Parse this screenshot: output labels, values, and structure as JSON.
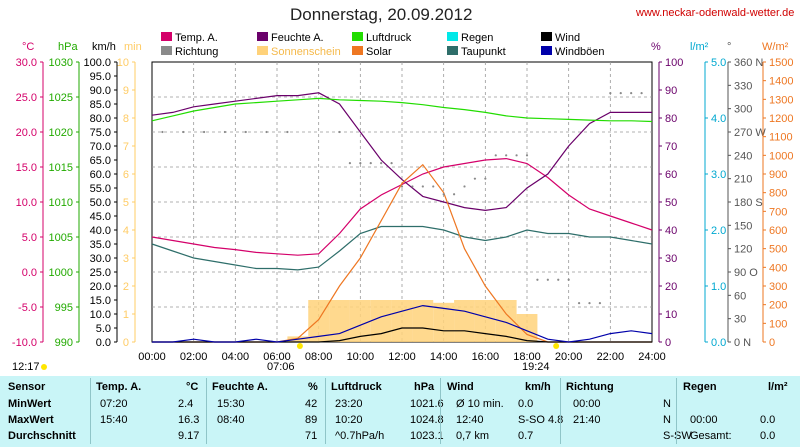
{
  "title": "Donnerstag, 20.09.2012",
  "site": "www.neckar-odenwald-wetter.de",
  "colors": {
    "temp": "#d4006a",
    "humidity": "#6a006a",
    "pressure": "#22dd00",
    "rain": "#00e8e8",
    "solar": "#ee7722",
    "dewpoint": "#2e6e6a",
    "direction": "#8a8a8a",
    "sunshine": "#ffd27a",
    "wind": "#000000",
    "gust": "#0000aa"
  },
  "legend": [
    {
      "label": "Temp. A.",
      "color": "#d4006a",
      "col": 0,
      "row": 0
    },
    {
      "label": "Feuchte A.",
      "color": "#6a006a",
      "col": 1,
      "row": 0
    },
    {
      "label": "Luftdruck",
      "color": "#22dd00",
      "col": 2,
      "row": 0
    },
    {
      "label": "Regen",
      "color": "#00e8e8",
      "col": 3,
      "row": 0
    },
    {
      "label": "Wind",
      "color": "#000000",
      "col": 4,
      "row": 0
    },
    {
      "label": "Richtung",
      "color": "#8a8a8a",
      "col": 0,
      "row": 1
    },
    {
      "label": "Sonnenschein",
      "color": "#ffd27a",
      "col": 1,
      "row": 1
    },
    {
      "label": "Solar",
      "color": "#ee7722",
      "col": 2,
      "row": 1
    },
    {
      "label": "Taupunkt",
      "color": "#2e6e6a",
      "col": 3,
      "row": 1
    },
    {
      "label": "Windböen",
      "color": "#0000aa",
      "col": 4,
      "row": 1
    }
  ],
  "axes": {
    "temp": {
      "unit": "°C",
      "color": "#d4006a",
      "ticks": [
        "30.0",
        "25.0",
        "20.0",
        "15.0",
        "10.0",
        "5.0",
        "0.0",
        "-5.0",
        "-10.0"
      ]
    },
    "pressure": {
      "unit": "hPa",
      "color": "#22aa00",
      "ticks": [
        "1030",
        "1025",
        "1020",
        "1015",
        "1010",
        "1005",
        "1000",
        "995",
        "990"
      ]
    },
    "wind": {
      "unit": "km/h",
      "color": "#000000",
      "ticks": [
        "100.0",
        "95.0",
        "90.0",
        "85.0",
        "80.0",
        "75.0",
        "70.0",
        "65.0",
        "60.0",
        "55.0",
        "50.0",
        "45.0",
        "40.0",
        "35.0",
        "30.0",
        "25.0",
        "20.0",
        "15.0",
        "10.0",
        "5.0",
        "0.0"
      ]
    },
    "sunshine": {
      "unit": "min",
      "color": "#ffcc66",
      "ticks": [
        "10",
        "9",
        "8",
        "7",
        "6",
        "5",
        "4",
        "3",
        "2",
        "1",
        "0"
      ]
    },
    "humidity": {
      "unit": "%",
      "color": "#6a006a",
      "ticks": [
        "100",
        "90",
        "80",
        "70",
        "60",
        "50",
        "40",
        "30",
        "20",
        "10",
        "0"
      ]
    },
    "rain": {
      "unit": "l/m²",
      "color": "#00a8d0",
      "ticks": [
        "5.0",
        "4.0",
        "3.0",
        "2.0",
        "1.0",
        "0.0"
      ]
    },
    "direction": {
      "unit": "°",
      "color": "#555555",
      "ticks": [
        "360 N",
        "330",
        "300",
        "270 W",
        "240",
        "210",
        "180 S",
        "150",
        "120",
        "90 O",
        "60",
        "30",
        "0 N"
      ]
    },
    "solar": {
      "unit": "W/m²",
      "color": "#ee7722",
      "ticks": [
        "1500",
        "1400",
        "1300",
        "1200",
        "1100",
        "1000",
        "900",
        "800",
        "700",
        "600",
        "500",
        "400",
        "300",
        "200",
        "100",
        "0"
      ]
    }
  },
  "x_ticks": [
    "00:00",
    "02:00",
    "04:00",
    "06:00",
    "08:00",
    "10:00",
    "12:00",
    "14:00",
    "16:00",
    "18:00",
    "20:00",
    "22:00",
    "24:00"
  ],
  "sun": {
    "moonrise": "12:17",
    "sunrise": "07:06",
    "sunset": "19:24"
  },
  "chart_data": {
    "type": "line",
    "x_unit": "hours",
    "xlim": [
      0,
      24
    ],
    "x": [
      0,
      1,
      2,
      3,
      4,
      5,
      6,
      7,
      8,
      9,
      10,
      11,
      12,
      13,
      14,
      15,
      16,
      17,
      18,
      19,
      20,
      21,
      22,
      23,
      24
    ],
    "series": [
      {
        "name": "Temp. A.",
        "axis": "temp",
        "values": [
          5.0,
          4.5,
          4.0,
          3.5,
          3.2,
          2.8,
          2.6,
          2.4,
          2.6,
          5.5,
          9.0,
          11.0,
          12.5,
          14.0,
          15.0,
          15.5,
          16.0,
          16.2,
          15.5,
          13.5,
          11.0,
          9.0,
          8.0,
          7.0,
          6.0
        ]
      },
      {
        "name": "Feuchte A.",
        "axis": "humidity",
        "values": [
          81,
          82,
          84,
          85,
          86,
          87,
          88,
          88,
          89,
          85,
          75,
          65,
          58,
          52,
          50,
          48,
          47,
          48,
          55,
          60,
          70,
          78,
          82,
          82,
          82
        ]
      },
      {
        "name": "Luftdruck",
        "axis": "pressure",
        "values": [
          1021.6,
          1022.3,
          1023.0,
          1023.5,
          1024.0,
          1024.2,
          1024.4,
          1024.6,
          1024.8,
          1024.6,
          1024.5,
          1024.4,
          1024.2,
          1023.9,
          1023.5,
          1023.2,
          1022.8,
          1022.3,
          1022.0,
          1021.9,
          1021.8,
          1021.7,
          1021.6,
          1021.6,
          1021.5
        ]
      },
      {
        "name": "Taupunkt",
        "axis": "temp",
        "values": [
          4.0,
          3.0,
          2.0,
          1.5,
          1.0,
          0.5,
          0.5,
          0.3,
          0.7,
          3.0,
          5.5,
          6.5,
          6.5,
          6.5,
          6.0,
          5.0,
          4.5,
          5.0,
          6.0,
          5.5,
          5.5,
          5.0,
          5.0,
          4.5,
          4.0
        ]
      },
      {
        "name": "Solar",
        "axis": "solar",
        "values": [
          0,
          0,
          0,
          0,
          0,
          0,
          0,
          20,
          120,
          300,
          450,
          650,
          850,
          950,
          800,
          500,
          300,
          150,
          40,
          0,
          0,
          0,
          0,
          0,
          0
        ]
      },
      {
        "name": "Wind",
        "axis": "wind",
        "values": [
          0,
          0,
          0,
          0,
          0,
          0,
          0,
          0,
          0,
          0.5,
          2,
          3,
          5,
          5,
          4,
          4,
          3,
          2,
          0.5,
          0,
          0,
          0,
          0,
          0,
          0
        ]
      },
      {
        "name": "Windböen",
        "axis": "wind",
        "values": [
          0,
          0,
          1,
          0,
          0,
          1,
          0,
          1,
          2,
          3,
          6,
          9,
          11,
          13,
          12,
          11,
          9,
          7,
          4,
          1,
          0,
          1,
          3,
          4,
          3
        ]
      },
      {
        "name": "Sonnenschein",
        "axis": "sunshine",
        "type": "bar",
        "values": [
          0,
          0,
          0,
          0,
          0,
          0,
          0,
          0.2,
          1.5,
          1.5,
          1.5,
          1.5,
          1.5,
          1.5,
          1.4,
          1.5,
          1.5,
          1.5,
          1.0,
          0,
          0,
          0,
          0,
          0,
          0
        ]
      }
    ],
    "direction_points": {
      "axis": "direction",
      "x": [
        0.5,
        1.5,
        2.5,
        3.5,
        4.5,
        5.5,
        6.5,
        9,
        9.5,
        10,
        10.5,
        11,
        11.5,
        12,
        12.5,
        13,
        13.5,
        14,
        14.5,
        15,
        15.5,
        16,
        16.5,
        17,
        17.5,
        18,
        18.5,
        19,
        19.5,
        20,
        20.5,
        21,
        21.5,
        22,
        22.5,
        23,
        23.5
      ],
      "values": [
        270,
        270,
        270,
        270,
        270,
        270,
        270,
        270,
        230,
        230,
        230,
        230,
        230,
        200,
        200,
        200,
        200,
        190,
        190,
        200,
        210,
        210,
        240,
        240,
        240,
        240,
        80,
        80,
        80,
        80,
        50,
        50,
        50,
        320,
        320,
        320,
        320
      ]
    }
  },
  "table": {
    "headers": [
      {
        "label": "Sensor",
        "x": 8
      },
      {
        "label": "Temp. A.",
        "x": 96
      },
      {
        "label": "°C",
        "x": 186
      },
      {
        "label": "Feuchte A.",
        "x": 212
      },
      {
        "label": "%",
        "x": 308
      },
      {
        "label": "Luftdruck",
        "x": 331
      },
      {
        "label": "hPa",
        "x": 414
      },
      {
        "label": "Wind",
        "x": 447
      },
      {
        "label": "km/h",
        "x": 525
      },
      {
        "label": "Richtung",
        "x": 566
      },
      {
        "label": "Regen",
        "x": 683
      },
      {
        "label": "l/m²",
        "x": 768
      }
    ],
    "rows": [
      {
        "label": "MinWert",
        "cells": [
          "07:20",
          "2.4",
          "15:30",
          "42",
          "23:20",
          "1021.6",
          "Ø 10 min.",
          "0.0",
          "00:00",
          "N",
          "",
          ""
        ]
      },
      {
        "label": "MaxWert",
        "cells": [
          "15:40",
          "16.3",
          "08:40",
          "89",
          "10:20",
          "1024.8",
          "12:40",
          "S-SO 4.8",
          "21:40",
          "N",
          "00:00",
          "0.0"
        ]
      },
      {
        "label": "Durchschnitt",
        "cells": [
          "",
          "9.17",
          "",
          "71",
          "^0.7hPa/h",
          "1023.1",
          "0,7 km",
          "0.7",
          "",
          "S-SW",
          "Gesamt:",
          "0.0"
        ]
      }
    ]
  }
}
